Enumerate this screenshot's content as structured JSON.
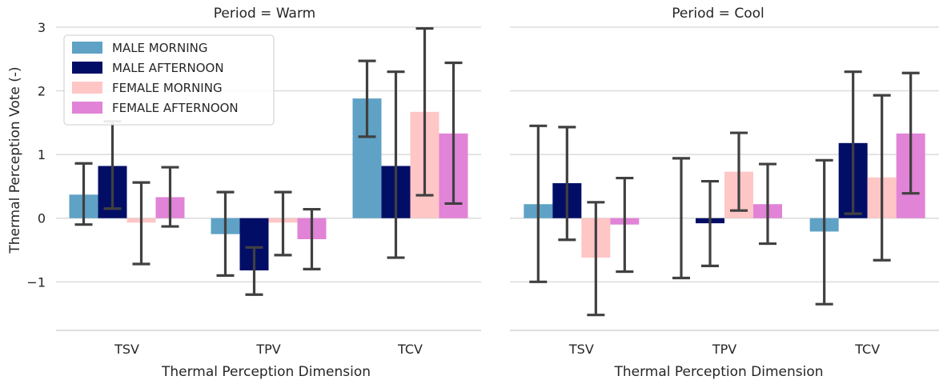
{
  "chart_data": {
    "type": "bar",
    "ylabel": "Thermal Perception Vote (-)",
    "ylim": [
      -1.75,
      3.1
    ],
    "yticks": [
      -1,
      0,
      1,
      2,
      3
    ],
    "ytick_labels": [
      "−1",
      "0",
      "1",
      "2",
      "3"
    ],
    "grid": true,
    "legend": "top-left",
    "colors": {
      "MALE MORNING": "#5fa2c5",
      "MALE AFTERNOON": "#020e66",
      "FEMALE MORNING": "#ffc6c6",
      "FEMALE AFTERNOON": "#e183d6",
      "errorbar": "#404040",
      "grid": "#d3d3d3"
    },
    "series_names": [
      "MALE MORNING",
      "MALE AFTERNOON",
      "FEMALE MORNING",
      "FEMALE AFTERNOON"
    ],
    "panels": [
      {
        "title": "Period = Warm",
        "xlabel": "Thermal Perception Dimension",
        "categories": [
          "TSV",
          "TPV",
          "TCV"
        ],
        "series": [
          {
            "name": "MALE MORNING",
            "values": [
              0.37,
              -0.25,
              1.88
            ],
            "err_low": [
              -0.1,
              -0.9,
              1.28
            ],
            "err_high": [
              0.86,
              0.41,
              2.47
            ]
          },
          {
            "name": "MALE AFTERNOON",
            "values": [
              0.82,
              -0.82,
              0.82
            ],
            "err_low": [
              0.15,
              -1.2,
              -0.62
            ],
            "err_high": [
              1.52,
              -0.46,
              2.3
            ]
          },
          {
            "name": "FEMALE MORNING",
            "values": [
              -0.07,
              -0.07,
              1.67
            ],
            "err_low": [
              -0.72,
              -0.58,
              0.36
            ],
            "err_high": [
              0.56,
              0.41,
              2.98
            ]
          },
          {
            "name": "FEMALE AFTERNOON",
            "values": [
              0.33,
              -0.33,
              1.33
            ],
            "err_low": [
              -0.13,
              -0.8,
              0.23
            ],
            "err_high": [
              0.8,
              0.14,
              2.44
            ]
          }
        ]
      },
      {
        "title": "Period = Cool",
        "xlabel": "Thermal Perception Dimension",
        "categories": [
          "TSV",
          "TPV",
          "TCV"
        ],
        "series": [
          {
            "name": "MALE MORNING",
            "values": [
              0.22,
              0.0,
              -0.21
            ],
            "err_low": [
              -1.0,
              -0.94,
              -1.35
            ],
            "err_high": [
              1.45,
              0.94,
              0.91
            ]
          },
          {
            "name": "MALE AFTERNOON",
            "values": [
              0.55,
              -0.08,
              1.18
            ],
            "err_low": [
              -0.34,
              -0.75,
              0.07
            ],
            "err_high": [
              1.43,
              0.58,
              2.3
            ]
          },
          {
            "name": "FEMALE MORNING",
            "values": [
              -0.62,
              0.73,
              0.64
            ],
            "err_low": [
              -1.52,
              0.12,
              -0.66
            ],
            "err_high": [
              0.25,
              1.34,
              1.93
            ]
          },
          {
            "name": "FEMALE AFTERNOON",
            "values": [
              -0.1,
              0.22,
              1.33
            ],
            "err_low": [
              -0.84,
              -0.4,
              0.39
            ],
            "err_high": [
              0.63,
              0.85,
              2.28
            ]
          }
        ]
      }
    ]
  }
}
